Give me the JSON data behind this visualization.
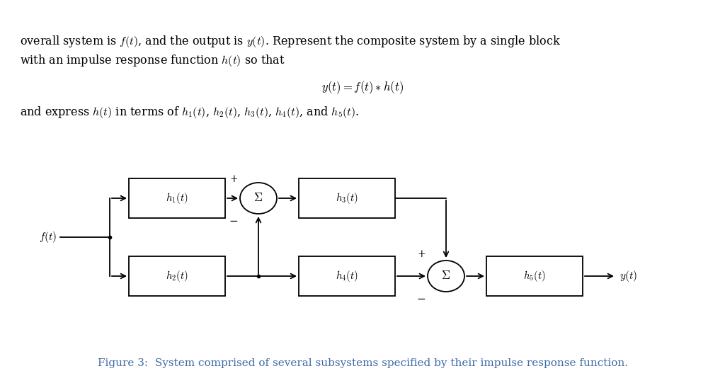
{
  "bg_color": "#ffffff",
  "text_color": "#1a1a2e",
  "blue_color": "#4169aa",
  "fig_width": 10.24,
  "fig_height": 5.41,
  "caption": "Figure 3:  System comprised of several subsystems specified by their impulse response function."
}
